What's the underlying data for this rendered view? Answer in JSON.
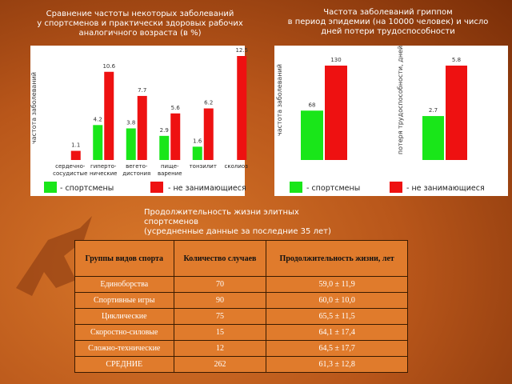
{
  "chart_data": [
    {
      "type": "bar",
      "title": [
        "Сравнение частоты некоторых заболеваний",
        "у спортсменов и практически здоровых рабочих",
        "аналогичного возраста (в %)"
      ],
      "ylabel": "частота заболеваний",
      "categories": [
        "сердечно-\nсосудистые",
        "гиперто-\nнические",
        "вегето-\nдистония",
        "пище-\nварение",
        "тонзилит",
        "сколиоз"
      ],
      "series": [
        {
          "name": "- спортсмены",
          "color": "#19e619",
          "values": [
            null,
            4.2,
            3.8,
            2.9,
            1.6,
            null
          ]
        },
        {
          "name": "- не занимающиеся",
          "color": "#ee1111",
          "values": [
            1.1,
            10.6,
            7.7,
            5.6,
            6.2,
            12.5
          ]
        }
      ],
      "ylim": [
        0,
        12.5
      ]
    },
    {
      "type": "bar",
      "title": [
        "Частота заболеваний гриппом",
        "в период эпидемии (на 10000 человек) и число",
        "дней потери трудоспособности"
      ],
      "ylabel": "частота заболеваний",
      "series": [
        {
          "name": "- спортсмены",
          "color": "#19e619",
          "values": [
            68
          ]
        },
        {
          "name": "- не занимающиеся",
          "color": "#ee1111",
          "values": [
            130
          ]
        }
      ],
      "ylim": [
        0,
        130
      ]
    },
    {
      "type": "bar",
      "ylabel": "потеря трудоспособности, дней",
      "series": [
        {
          "color": "#19e619",
          "values": [
            2.7
          ]
        },
        {
          "color": "#ee1111",
          "values": [
            5.8
          ]
        }
      ],
      "ylim": [
        0,
        5.8
      ]
    }
  ],
  "table": {
    "heading": [
      "Продолжительность жизни элитных спортсменов",
      "(усредненные данные за последние 35 лет)"
    ],
    "columns": [
      "Группы видов спорта",
      "Количество случаев",
      "Продолжительность жизни, лет"
    ],
    "rows": [
      [
        "Единоборства",
        70,
        "59,0 ± 11,9"
      ],
      [
        "Спортивные игры",
        90,
        "60,0 ± 10,0"
      ],
      [
        "Циклические",
        75,
        "65,5 ± 11,5"
      ],
      [
        "Скоростно-силовые",
        15,
        "64,1 ± 17,4"
      ],
      [
        "Сложно-технические",
        12,
        "64,5 ± 17,7"
      ],
      [
        "СРЕДНИЕ",
        262,
        "61,3 ± 12,8"
      ]
    ]
  }
}
